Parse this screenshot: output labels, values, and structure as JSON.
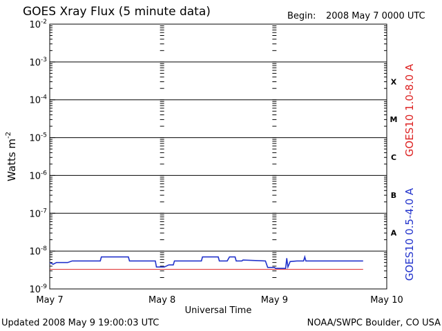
{
  "header": {
    "title": "GOES Xray Flux (5 minute data)",
    "begin_label": "Begin:",
    "begin_value": "2008 May 7 0000 UTC"
  },
  "footer": {
    "updated": "Updated 2008 May  9 19:00:03 UTC",
    "credit": "NOAA/SWPC Boulder, CO USA"
  },
  "chart_data": {
    "type": "line",
    "title": "GOES Xray Flux (5 minute data)",
    "xlabel": "Universal Time",
    "ylabel": "Watts m",
    "ylabel_superscript": "-2",
    "yscale": "log",
    "ylim": [
      1e-09,
      0.01
    ],
    "xlim": [
      0,
      3
    ],
    "x_unit": "days since 2008 May 7 0000 UTC",
    "grid": "horizontal lines at each decade; dashed vertical day markers",
    "x_ticks": [
      {
        "x": 0,
        "label": "May 7"
      },
      {
        "x": 1,
        "label": "May 8"
      },
      {
        "x": 2,
        "label": "May 9"
      },
      {
        "x": 3,
        "label": "May 10"
      }
    ],
    "y_ticks": [
      {
        "exp": -9
      },
      {
        "exp": -8
      },
      {
        "exp": -7
      },
      {
        "exp": -6
      },
      {
        "exp": -5
      },
      {
        "exp": -4
      },
      {
        "exp": -3
      },
      {
        "exp": -2
      }
    ],
    "tick_base": "10",
    "flare_classes": [
      {
        "label": "A",
        "exp": -8
      },
      {
        "label": "B",
        "exp": -7
      },
      {
        "label": "C",
        "exp": -6
      },
      {
        "label": "M",
        "exp": -5
      },
      {
        "label": "X",
        "exp": -4
      }
    ],
    "series": [
      {
        "name": "GOES10 1.0-8.0 A",
        "color": "#dd2222",
        "points": [
          [
            0.0,
            3.3e-09
          ],
          [
            2.79,
            3.3e-09
          ]
        ]
      },
      {
        "name": "GOES10 0.5-4.0 A",
        "color": "#2233cc",
        "points": [
          [
            0.0,
            5e-09
          ],
          [
            0.03,
            4.5e-09
          ],
          [
            0.06,
            5e-09
          ],
          [
            0.1,
            5e-09
          ],
          [
            0.16,
            5e-09
          ],
          [
            0.2,
            5.5e-09
          ],
          [
            0.45,
            5.5e-09
          ],
          [
            0.46,
            7e-09
          ],
          [
            0.7,
            7e-09
          ],
          [
            0.71,
            5.5e-09
          ],
          [
            0.94,
            5.5e-09
          ],
          [
            0.95,
            3.8e-09
          ],
          [
            1.02,
            3.8e-09
          ],
          [
            1.06,
            4.3e-09
          ],
          [
            1.1,
            4.3e-09
          ],
          [
            1.11,
            5.5e-09
          ],
          [
            1.35,
            5.5e-09
          ],
          [
            1.36,
            7e-09
          ],
          [
            1.5,
            7e-09
          ],
          [
            1.51,
            5.5e-09
          ],
          [
            1.58,
            5.5e-09
          ],
          [
            1.6,
            7e-09
          ],
          [
            1.65,
            7e-09
          ],
          [
            1.66,
            5.5e-09
          ],
          [
            1.71,
            5.5e-09
          ],
          [
            1.72,
            5.8e-09
          ],
          [
            1.92,
            5.5e-09
          ],
          [
            1.94,
            3.7e-09
          ],
          [
            2.0,
            3.7e-09
          ],
          [
            2.01,
            3.5e-09
          ],
          [
            2.1,
            3.5e-09
          ],
          [
            2.11,
            6.5e-09
          ],
          [
            2.12,
            3.8e-09
          ],
          [
            2.14,
            5.3e-09
          ],
          [
            2.2,
            5.5e-09
          ],
          [
            2.26,
            5.5e-09
          ],
          [
            2.27,
            7e-09
          ],
          [
            2.28,
            5.5e-09
          ],
          [
            2.5,
            5.5e-09
          ],
          [
            2.79,
            5.5e-09
          ]
        ]
      }
    ]
  }
}
